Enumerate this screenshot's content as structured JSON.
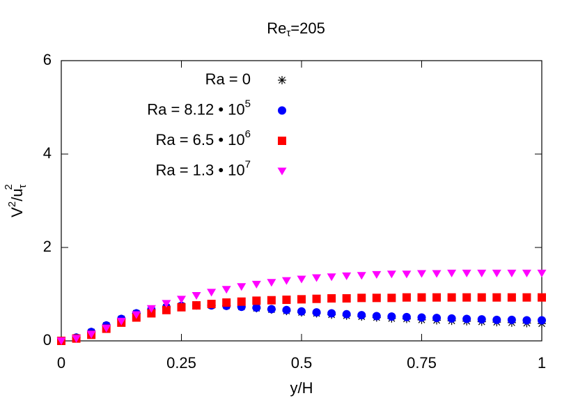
{
  "chart_data": {
    "type": "scatter",
    "title": [
      "Re",
      "τ",
      "=205"
    ],
    "xlabel": "y/H",
    "ylabel": [
      "V",
      "2",
      "/u",
      "τ",
      "2"
    ],
    "x": [
      0,
      0.03125,
      0.0625,
      0.09375,
      0.125,
      0.15625,
      0.1875,
      0.21875,
      0.25,
      0.28125,
      0.3125,
      0.34375,
      0.375,
      0.40625,
      0.4375,
      0.46875,
      0.5,
      0.53125,
      0.5625,
      0.59375,
      0.625,
      0.65625,
      0.6875,
      0.71875,
      0.75,
      0.78125,
      0.8125,
      0.84375,
      0.875,
      0.90625,
      0.9375,
      0.96875,
      1
    ],
    "series": [
      {
        "name": [
          "Ra = 0"
        ],
        "color": "#000000",
        "marker": "star",
        "values": [
          0,
          0.07,
          0.19,
          0.33,
          0.47,
          0.59,
          0.67,
          0.72,
          0.75,
          0.76,
          0.76,
          0.75,
          0.73,
          0.7,
          0.67,
          0.64,
          0.61,
          0.59,
          0.56,
          0.54,
          0.52,
          0.5,
          0.48,
          0.47,
          0.45,
          0.44,
          0.43,
          0.42,
          0.41,
          0.4,
          0.39,
          0.38,
          0.37
        ]
      },
      {
        "name": [
          "Ra = 8.12 • 10",
          "5"
        ],
        "color": "#0000ff",
        "marker": "circle",
        "values": [
          0,
          0.07,
          0.19,
          0.33,
          0.47,
          0.59,
          0.67,
          0.72,
          0.75,
          0.76,
          0.76,
          0.75,
          0.73,
          0.71,
          0.68,
          0.66,
          0.63,
          0.61,
          0.59,
          0.57,
          0.55,
          0.53,
          0.52,
          0.51,
          0.5,
          0.49,
          0.48,
          0.47,
          0.46,
          0.45,
          0.45,
          0.44,
          0.44
        ]
      },
      {
        "name": [
          "Ra = 6.5 • 10",
          "6"
        ],
        "color": "#ff0000",
        "marker": "square",
        "values": [
          0,
          0.05,
          0.13,
          0.26,
          0.39,
          0.5,
          0.59,
          0.66,
          0.72,
          0.76,
          0.79,
          0.82,
          0.84,
          0.86,
          0.87,
          0.88,
          0.89,
          0.9,
          0.91,
          0.91,
          0.92,
          0.92,
          0.92,
          0.93,
          0.93,
          0.93,
          0.93,
          0.93,
          0.93,
          0.93,
          0.93,
          0.93,
          0.93
        ]
      },
      {
        "name": [
          "Ra = 1.3 • 10",
          "7"
        ],
        "color": "#ff00ff",
        "marker": "triangle-down",
        "values": [
          0,
          0.05,
          0.14,
          0.27,
          0.42,
          0.56,
          0.69,
          0.8,
          0.89,
          0.97,
          1.04,
          1.1,
          1.16,
          1.21,
          1.25,
          1.29,
          1.32,
          1.35,
          1.37,
          1.39,
          1.4,
          1.42,
          1.43,
          1.43,
          1.44,
          1.44,
          1.45,
          1.45,
          1.45,
          1.45,
          1.45,
          1.45,
          1.45
        ]
      }
    ],
    "xlim": [
      0,
      1
    ],
    "ylim": [
      0,
      6
    ],
    "xticks": [
      0,
      0.25,
      0.5,
      0.75,
      1
    ],
    "yticks": [
      0,
      2,
      4,
      6
    ],
    "legend": "top"
  }
}
